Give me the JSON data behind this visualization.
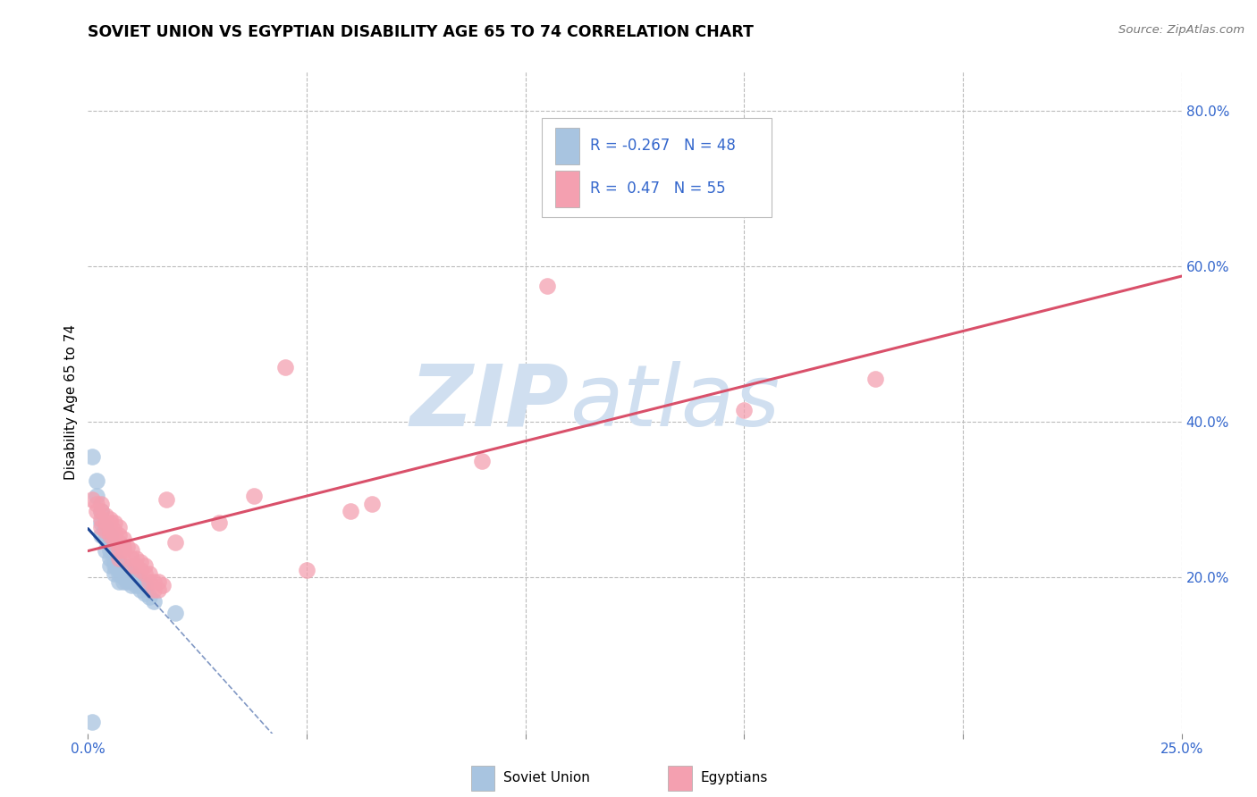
{
  "title": "SOVIET UNION VS EGYPTIAN DISABILITY AGE 65 TO 74 CORRELATION CHART",
  "source": "Source: ZipAtlas.com",
  "ylabel": "Disability Age 65 to 74",
  "xlim": [
    0.0,
    0.25
  ],
  "ylim": [
    0.0,
    0.85
  ],
  "x_ticks": [
    0.0,
    0.05,
    0.1,
    0.15,
    0.2,
    0.25
  ],
  "x_tick_labels": [
    "0.0%",
    "",
    "",
    "",
    "",
    "25.0%"
  ],
  "y_ticks_right": [
    0.2,
    0.4,
    0.6,
    0.8
  ],
  "y_tick_labels_right": [
    "20.0%",
    "40.0%",
    "60.0%",
    "80.0%"
  ],
  "legend_blue_label": "Soviet Union",
  "legend_pink_label": "Egyptians",
  "R_blue": -0.267,
  "N_blue": 48,
  "R_pink": 0.47,
  "N_pink": 55,
  "blue_color": "#a8c4e0",
  "pink_color": "#f4a0b0",
  "blue_line_color": "#1a4494",
  "pink_line_color": "#d9506a",
  "blue_scatter": [
    [
      0.001,
      0.355
    ],
    [
      0.002,
      0.325
    ],
    [
      0.002,
      0.305
    ],
    [
      0.003,
      0.285
    ],
    [
      0.003,
      0.27
    ],
    [
      0.003,
      0.255
    ],
    [
      0.004,
      0.265
    ],
    [
      0.004,
      0.25
    ],
    [
      0.004,
      0.235
    ],
    [
      0.005,
      0.255
    ],
    [
      0.005,
      0.245
    ],
    [
      0.005,
      0.235
    ],
    [
      0.005,
      0.225
    ],
    [
      0.005,
      0.215
    ],
    [
      0.006,
      0.23
    ],
    [
      0.006,
      0.22
    ],
    [
      0.006,
      0.215
    ],
    [
      0.006,
      0.205
    ],
    [
      0.007,
      0.22
    ],
    [
      0.007,
      0.215
    ],
    [
      0.007,
      0.21
    ],
    [
      0.007,
      0.205
    ],
    [
      0.007,
      0.195
    ],
    [
      0.008,
      0.215
    ],
    [
      0.008,
      0.21
    ],
    [
      0.008,
      0.205
    ],
    [
      0.008,
      0.2
    ],
    [
      0.008,
      0.195
    ],
    [
      0.009,
      0.21
    ],
    [
      0.009,
      0.205
    ],
    [
      0.009,
      0.2
    ],
    [
      0.009,
      0.195
    ],
    [
      0.01,
      0.205
    ],
    [
      0.01,
      0.2
    ],
    [
      0.01,
      0.195
    ],
    [
      0.01,
      0.19
    ],
    [
      0.011,
      0.2
    ],
    [
      0.011,
      0.195
    ],
    [
      0.011,
      0.19
    ],
    [
      0.012,
      0.195
    ],
    [
      0.012,
      0.19
    ],
    [
      0.012,
      0.185
    ],
    [
      0.013,
      0.19
    ],
    [
      0.013,
      0.18
    ],
    [
      0.014,
      0.175
    ],
    [
      0.015,
      0.17
    ],
    [
      0.02,
      0.155
    ],
    [
      0.001,
      0.015
    ]
  ],
  "pink_scatter": [
    [
      0.001,
      0.3
    ],
    [
      0.002,
      0.295
    ],
    [
      0.002,
      0.285
    ],
    [
      0.003,
      0.295
    ],
    [
      0.003,
      0.285
    ],
    [
      0.003,
      0.275
    ],
    [
      0.003,
      0.265
    ],
    [
      0.004,
      0.28
    ],
    [
      0.004,
      0.27
    ],
    [
      0.004,
      0.26
    ],
    [
      0.005,
      0.275
    ],
    [
      0.005,
      0.27
    ],
    [
      0.005,
      0.26
    ],
    [
      0.005,
      0.255
    ],
    [
      0.006,
      0.27
    ],
    [
      0.006,
      0.26
    ],
    [
      0.006,
      0.255
    ],
    [
      0.006,
      0.245
    ],
    [
      0.007,
      0.265
    ],
    [
      0.007,
      0.255
    ],
    [
      0.007,
      0.245
    ],
    [
      0.007,
      0.235
    ],
    [
      0.007,
      0.225
    ],
    [
      0.008,
      0.25
    ],
    [
      0.008,
      0.24
    ],
    [
      0.008,
      0.235
    ],
    [
      0.009,
      0.24
    ],
    [
      0.01,
      0.235
    ],
    [
      0.01,
      0.225
    ],
    [
      0.01,
      0.215
    ],
    [
      0.011,
      0.225
    ],
    [
      0.011,
      0.215
    ],
    [
      0.012,
      0.22
    ],
    [
      0.012,
      0.21
    ],
    [
      0.013,
      0.215
    ],
    [
      0.013,
      0.205
    ],
    [
      0.014,
      0.205
    ],
    [
      0.014,
      0.195
    ],
    [
      0.015,
      0.195
    ],
    [
      0.015,
      0.185
    ],
    [
      0.016,
      0.195
    ],
    [
      0.016,
      0.185
    ],
    [
      0.017,
      0.19
    ],
    [
      0.018,
      0.3
    ],
    [
      0.02,
      0.245
    ],
    [
      0.03,
      0.27
    ],
    [
      0.038,
      0.305
    ],
    [
      0.045,
      0.47
    ],
    [
      0.05,
      0.21
    ],
    [
      0.06,
      0.285
    ],
    [
      0.065,
      0.295
    ],
    [
      0.09,
      0.35
    ],
    [
      0.105,
      0.575
    ],
    [
      0.15,
      0.415
    ],
    [
      0.18,
      0.455
    ]
  ],
  "watermark_zip": "ZIP",
  "watermark_atlas": "atlas",
  "watermark_color": "#d0dff0",
  "grid_color": "#bbbbbb",
  "background_color": "#ffffff"
}
